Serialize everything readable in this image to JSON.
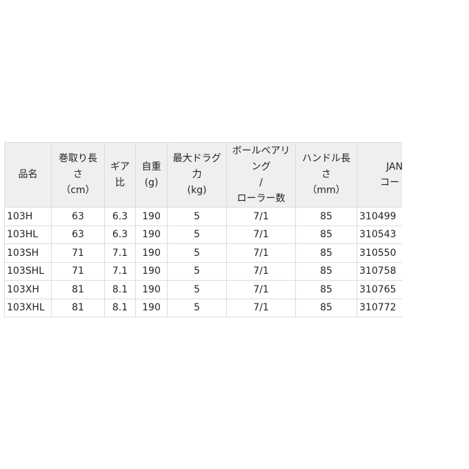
{
  "table": {
    "header": [
      [
        "品名"
      ],
      [
        "巻取り長",
        "さ",
        "（cm）"
      ],
      [
        "ギア",
        "比"
      ],
      [
        "自重",
        "(g)"
      ],
      [
        "最大ドラグ",
        "力",
        "(kg)"
      ],
      [
        "ボールベアリ",
        "ング",
        "/",
        "ローラー数"
      ],
      [
        "ハンドル長",
        "さ",
        "（mm）"
      ],
      [
        "JAN",
        "コード"
      ]
    ],
    "rows": [
      [
        "103H",
        "63",
        "6.3",
        "190",
        "5",
        "7/1",
        "85",
        "310499"
      ],
      [
        "103HL",
        "63",
        "6.3",
        "190",
        "5",
        "7/1",
        "85",
        "310543"
      ],
      [
        "103SH",
        "71",
        "7.1",
        "190",
        "5",
        "7/1",
        "85",
        "310550"
      ],
      [
        "103SHL",
        "71",
        "7.1",
        "190",
        "5",
        "7/1",
        "85",
        "310758"
      ],
      [
        "103XH",
        "81",
        "8.1",
        "190",
        "5",
        "7/1",
        "85",
        "310765"
      ],
      [
        "103XHL",
        "81",
        "8.1",
        "190",
        "5",
        "7/1",
        "85",
        "310772"
      ]
    ]
  }
}
